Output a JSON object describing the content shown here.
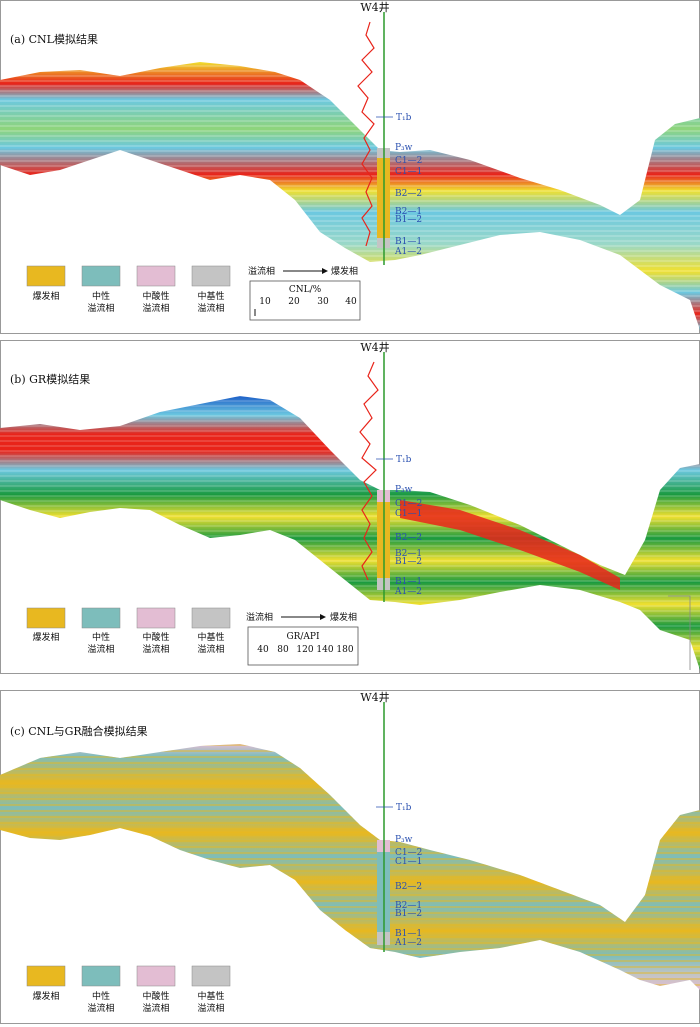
{
  "figure": {
    "well_name": "W4井",
    "panels": [
      {
        "id": "a",
        "title": "(a)  CNL模拟结果",
        "legend_direction_left": "溢流相",
        "legend_direction_right": "爆发相",
        "scale_title": "CNL/%",
        "scale_ticks": [
          "10",
          "20",
          "30",
          "40"
        ]
      },
      {
        "id": "b",
        "title": "(b)  GR模拟结果",
        "legend_direction_left": "溢流相",
        "legend_direction_right": "爆发相",
        "scale_title": "GR/API",
        "scale_ticks": [
          "40",
          "80",
          "120",
          "140",
          "180"
        ]
      },
      {
        "id": "c",
        "title": "(c)  CNL与GR融合模拟结果"
      }
    ],
    "legend": [
      {
        "line1": "爆发相",
        "line2": "",
        "color": "#e8b820"
      },
      {
        "line1": "中性",
        "line2": "溢流相",
        "color": "#7dbdbb"
      },
      {
        "line1": "中酸性",
        "line2": "溢流相",
        "color": "#e3bdd3"
      },
      {
        "line1": "中基性",
        "line2": "溢流相",
        "color": "#c4c4c4"
      }
    ],
    "horizons": {
      "top": "T₁b",
      "p3w": "P₃w",
      "layers": [
        "C1—2",
        "C1—1",
        "B2—2",
        "B2—1",
        "B1—2",
        "B1—1",
        "A1—2"
      ]
    },
    "colors": {
      "hot": "#e8241a",
      "yellow": "#f0e030",
      "cyan": "#6cc8e0",
      "green": "#1a9a40",
      "blue": "#1d5fc8",
      "well": "#2c9a2c",
      "horizon_text": "#2a50b0"
    }
  }
}
